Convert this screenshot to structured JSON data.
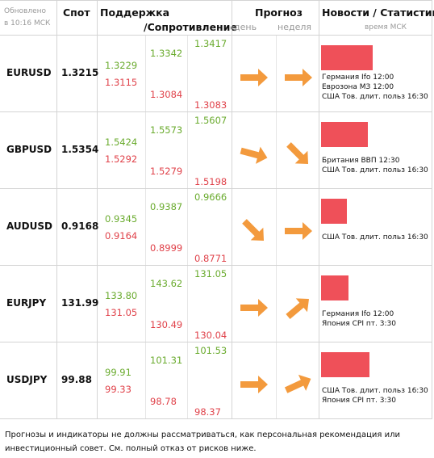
{
  "header": {
    "updated": [
      "Обновлено",
      "в 10:16 МСК"
    ],
    "spot": "Спот",
    "support": "Поддержка",
    "resistance": "/Сопротивление",
    "forecast": "Прогноз",
    "day": "день",
    "week": "неделя",
    "news": "Новости / Статистика",
    "news_time": "время МСК"
  },
  "rows": [
    {
      "symbol": "EURUSD",
      "spot": "1.3215",
      "levels": [
        [
          "1.3229",
          "1.3115"
        ],
        [
          "1.3342",
          "1.3084"
        ],
        [
          "1.3417",
          "1.3083"
        ]
      ],
      "news": [
        "Германия Ifo 12:00",
        "Еврозона МЗ 12:00",
        "США Тов. длит. польз 16:30"
      ]
    },
    {
      "symbol": "GBPUSD",
      "spot": "1.5354",
      "levels": [
        [
          "1.5424",
          "1.5292"
        ],
        [
          "1.5573",
          "1.5279"
        ],
        [
          "1.5607",
          "1.5198"
        ]
      ],
      "news": [
        "Британия ВВП 12:30",
        "США Тов. длит. польз 16:30"
      ]
    },
    {
      "symbol": "AUDUSD",
      "spot": "0.9168",
      "levels": [
        [
          "0.9345",
          "0.9164"
        ],
        [
          "0.9387",
          "0.8999"
        ],
        [
          "0.9666",
          "0.8771"
        ]
      ],
      "news": [
        "США Тов. длит. польз 16:30"
      ]
    },
    {
      "symbol": "EURJPY",
      "spot": "131.99",
      "levels": [
        [
          "133.80",
          "131.05"
        ],
        [
          "143.62",
          "130.49"
        ],
        [
          "131.05",
          "130.04"
        ]
      ],
      "news": [
        "Германия Ifo 12:00",
        "Япония CPI пт. 3:30"
      ]
    },
    {
      "symbol": "USDJPY",
      "spot": "99.88",
      "levels": [
        [
          "99.91",
          "99.33"
        ],
        [
          "101.31",
          "98.78"
        ],
        [
          "101.53",
          "98.37"
        ]
      ],
      "news": [
        "США Тов. длит. польз 16:30",
        "Япония CPI пт. 3:30"
      ]
    }
  ],
  "footer": "Прогнозы и индикаторы не должны рассматриваться, как персональная рекомендация или инвестиционный совет. См. полный отказ от рисков ниже."
}
